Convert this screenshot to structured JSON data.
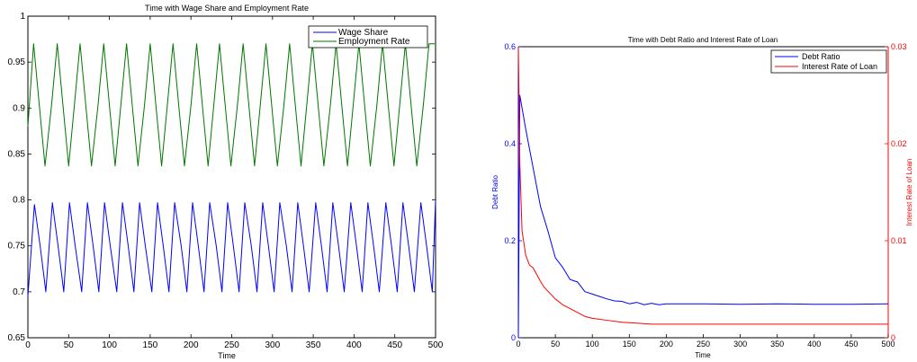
{
  "chart_data": [
    {
      "type": "line",
      "title": "Time with Wage Share and Employment Rate",
      "xlabel": "Time",
      "ylabel": "",
      "xlim": [
        0,
        500
      ],
      "ylim": [
        0.65,
        1
      ],
      "xticks": [
        "0",
        "50",
        "100",
        "150",
        "200",
        "250",
        "300",
        "350",
        "400",
        "450",
        "500"
      ],
      "yticks": [
        "0.65",
        "0.7",
        "0.75",
        "0.8",
        "0.85",
        "0.9",
        "0.95",
        "1"
      ],
      "legend_position": "top-right",
      "series": [
        {
          "name": "Wage Share",
          "color": "#0000ff",
          "pattern": "relaxation oscillation, period ~28.5, phase shifted +0.25 periods",
          "x": [
            0,
            8,
            15,
            22,
            30,
            37,
            44,
            51,
            58,
            66,
            73,
            80,
            87,
            94,
            101,
            109,
            116,
            123,
            130,
            137,
            144,
            152,
            159,
            166,
            173,
            180,
            188,
            195,
            202,
            209,
            216,
            223,
            231,
            238,
            245,
            252,
            259,
            266,
            274,
            281,
            288,
            295,
            302,
            309,
            317,
            324,
            331,
            338,
            345,
            353,
            360,
            367,
            374,
            381,
            388,
            396,
            403,
            410,
            417,
            424,
            431,
            439,
            446,
            453,
            460,
            467,
            474,
            482,
            489,
            496,
            500
          ],
          "y": [
            0.695,
            0.795,
            0.75,
            0.7,
            0.797,
            0.75,
            0.7,
            0.797,
            0.75,
            0.7,
            0.797,
            0.75,
            0.7,
            0.797,
            0.75,
            0.7,
            0.797,
            0.75,
            0.7,
            0.797,
            0.75,
            0.7,
            0.797,
            0.75,
            0.7,
            0.797,
            0.75,
            0.7,
            0.797,
            0.75,
            0.7,
            0.797,
            0.75,
            0.7,
            0.797,
            0.75,
            0.7,
            0.797,
            0.75,
            0.7,
            0.797,
            0.75,
            0.7,
            0.797,
            0.75,
            0.7,
            0.797,
            0.75,
            0.7,
            0.797,
            0.75,
            0.7,
            0.797,
            0.75,
            0.7,
            0.797,
            0.75,
            0.7,
            0.797,
            0.75,
            0.7,
            0.797,
            0.75,
            0.7,
            0.797,
            0.75,
            0.7,
            0.797,
            0.75,
            0.7,
            0.8
          ]
        },
        {
          "name": "Employment Rate",
          "color": "#007700",
          "pattern": "smooth oscillation, period ~28.5",
          "x": [
            0,
            7,
            14,
            21,
            29,
            36,
            43,
            50,
            57,
            64,
            71,
            78,
            86,
            93,
            100,
            107,
            114,
            121,
            128,
            135,
            143,
            150,
            157,
            164,
            171,
            178,
            185,
            192,
            200,
            207,
            214,
            221,
            228,
            235,
            242,
            249,
            257,
            264,
            271,
            278,
            285,
            292,
            299,
            306,
            314,
            321,
            328,
            335,
            342,
            349,
            356,
            363,
            371,
            378,
            385,
            392,
            399,
            406,
            413,
            420,
            428,
            435,
            442,
            449,
            456,
            463,
            470,
            477,
            485,
            492,
            499
          ],
          "y": [
            0.88,
            0.97,
            0.903,
            0.837,
            0.903,
            0.97,
            0.903,
            0.837,
            0.903,
            0.97,
            0.903,
            0.837,
            0.903,
            0.97,
            0.903,
            0.837,
            0.903,
            0.97,
            0.903,
            0.837,
            0.903,
            0.97,
            0.903,
            0.837,
            0.903,
            0.97,
            0.903,
            0.837,
            0.903,
            0.97,
            0.903,
            0.837,
            0.903,
            0.97,
            0.903,
            0.837,
            0.903,
            0.97,
            0.903,
            0.837,
            0.903,
            0.97,
            0.903,
            0.837,
            0.903,
            0.97,
            0.903,
            0.837,
            0.903,
            0.97,
            0.903,
            0.837,
            0.903,
            0.97,
            0.903,
            0.837,
            0.903,
            0.97,
            0.903,
            0.837,
            0.903,
            0.97,
            0.903,
            0.837,
            0.903,
            0.97,
            0.903,
            0.837,
            0.903,
            0.97,
            0.97
          ]
        }
      ]
    },
    {
      "type": "line",
      "title": "Time with Debt Ratio and Interest Rate of Loan",
      "xlabel": "Time",
      "ylabel": "Debt Ratio",
      "ylabel_right": "Interest Rate of Loan",
      "xlim": [
        0,
        500
      ],
      "ylim": [
        0,
        0.6
      ],
      "ylim_right": [
        0,
        0.03
      ],
      "xticks": [
        "0",
        "50",
        "100",
        "150",
        "200",
        "250",
        "300",
        "350",
        "400",
        "450",
        "500"
      ],
      "yticks": [
        "0",
        "0.2",
        "0.4",
        "0.6"
      ],
      "yticks_right": [
        "0",
        "0.01",
        "0.02",
        "0.03"
      ],
      "legend_position": "top-right",
      "series": [
        {
          "name": "Debt Ratio",
          "axis": "left",
          "color": "#0000ff",
          "x": [
            0,
            2,
            10,
            20,
            30,
            40,
            50,
            60,
            70,
            80,
            90,
            100,
            110,
            120,
            130,
            140,
            150,
            160,
            170,
            180,
            190,
            200,
            250,
            300,
            350,
            400,
            450,
            500
          ],
          "y": [
            0,
            0.5,
            0.43,
            0.35,
            0.27,
            0.22,
            0.165,
            0.145,
            0.12,
            0.115,
            0.095,
            0.09,
            0.085,
            0.08,
            0.076,
            0.075,
            0.07,
            0.073,
            0.068,
            0.071,
            0.068,
            0.07,
            0.07,
            0.069,
            0.07,
            0.069,
            0.069,
            0.07
          ]
        },
        {
          "name": "Interest Rate of Loan",
          "axis": "right",
          "color": "#ff0000",
          "x": [
            0,
            2,
            5,
            10,
            15,
            20,
            25,
            30,
            35,
            40,
            50,
            60,
            70,
            80,
            90,
            100,
            120,
            140,
            160,
            180,
            200,
            250,
            300,
            350,
            400,
            450,
            500
          ],
          "y": [
            0.03,
            0.018,
            0.011,
            0.0085,
            0.0075,
            0.0072,
            0.0065,
            0.0058,
            0.0052,
            0.0048,
            0.004,
            0.0034,
            0.003,
            0.0026,
            0.0022,
            0.002,
            0.0018,
            0.0016,
            0.0015,
            0.0014,
            0.0014,
            0.0014,
            0.0014,
            0.0014,
            0.0014,
            0.0014,
            0.0014
          ]
        }
      ]
    }
  ]
}
